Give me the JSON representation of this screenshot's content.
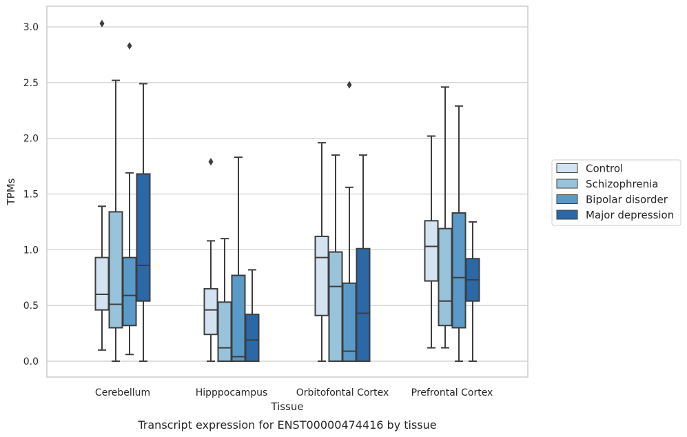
{
  "chart_data": {
    "type": "box",
    "caption": "Transcript expression for ENST00000474416 by tissue",
    "xlabel": "Tissue",
    "ylabel": "TPMs",
    "ylim": [
      -0.15,
      3.2
    ],
    "yticks": [
      "0.0",
      "0.5",
      "1.0",
      "1.5",
      "2.0",
      "2.5",
      "3.0"
    ],
    "grid": "horizontal",
    "legend_position": "right",
    "categories": [
      "Cerebellum",
      "Hipppocampus",
      "Orbitofontal Cortex",
      "Prefrontal Cortex"
    ],
    "series": [
      {
        "name": "Control",
        "color": "#d4e3f1",
        "boxes": [
          {
            "whislo": 0.1,
            "q1": 0.46,
            "med": 0.6,
            "q3": 0.93,
            "whishi": 1.39,
            "fliers": [
              3.03
            ]
          },
          {
            "whislo": 0.0,
            "q1": 0.24,
            "med": 0.46,
            "q3": 0.65,
            "whishi": 1.08,
            "fliers": [
              1.79
            ]
          },
          {
            "whislo": 0.0,
            "q1": 0.41,
            "med": 0.93,
            "q3": 1.12,
            "whishi": 1.96,
            "fliers": []
          },
          {
            "whislo": 0.12,
            "q1": 0.72,
            "med": 1.03,
            "q3": 1.26,
            "whishi": 2.02,
            "fliers": []
          }
        ]
      },
      {
        "name": "Schizophrenia",
        "color": "#99c3db",
        "boxes": [
          {
            "whislo": 0.0,
            "q1": 0.3,
            "med": 0.51,
            "q3": 1.34,
            "whishi": 2.52,
            "fliers": []
          },
          {
            "whislo": 0.0,
            "q1": 0.0,
            "med": 0.12,
            "q3": 0.53,
            "whishi": 1.1,
            "fliers": []
          },
          {
            "whislo": 0.0,
            "q1": 0.0,
            "med": 0.67,
            "q3": 0.98,
            "whishi": 1.85,
            "fliers": []
          },
          {
            "whislo": 0.12,
            "q1": 0.32,
            "med": 0.54,
            "q3": 1.19,
            "whishi": 2.46,
            "fliers": []
          }
        ]
      },
      {
        "name": "Bipolar disorder",
        "color": "#5a9ac8",
        "boxes": [
          {
            "whislo": 0.06,
            "q1": 0.32,
            "med": 0.59,
            "q3": 0.93,
            "whishi": 1.69,
            "fliers": [
              2.83
            ]
          },
          {
            "whislo": 0.0,
            "q1": 0.0,
            "med": 0.04,
            "q3": 0.77,
            "whishi": 1.83,
            "fliers": []
          },
          {
            "whislo": 0.0,
            "q1": 0.0,
            "med": 0.09,
            "q3": 0.7,
            "whishi": 1.56,
            "fliers": [
              2.48
            ]
          },
          {
            "whislo": 0.0,
            "q1": 0.3,
            "med": 0.75,
            "q3": 1.33,
            "whishi": 2.29,
            "fliers": []
          }
        ]
      },
      {
        "name": "Major depression",
        "color": "#2a68a7",
        "boxes": [
          {
            "whislo": 0.0,
            "q1": 0.54,
            "med": 0.86,
            "q3": 1.68,
            "whishi": 2.49,
            "fliers": []
          },
          {
            "whislo": 0.0,
            "q1": 0.0,
            "med": 0.19,
            "q3": 0.42,
            "whishi": 0.82,
            "fliers": []
          },
          {
            "whislo": 0.0,
            "q1": 0.0,
            "med": 0.43,
            "q3": 1.01,
            "whishi": 1.85,
            "fliers": []
          },
          {
            "whislo": 0.0,
            "q1": 0.54,
            "med": 0.73,
            "q3": 0.92,
            "whishi": 1.25,
            "fliers": []
          }
        ]
      }
    ],
    "style": {
      "grid_color": "#cccccc",
      "frame_color": "#cccccc",
      "line_color": "#3d3d3d"
    }
  }
}
